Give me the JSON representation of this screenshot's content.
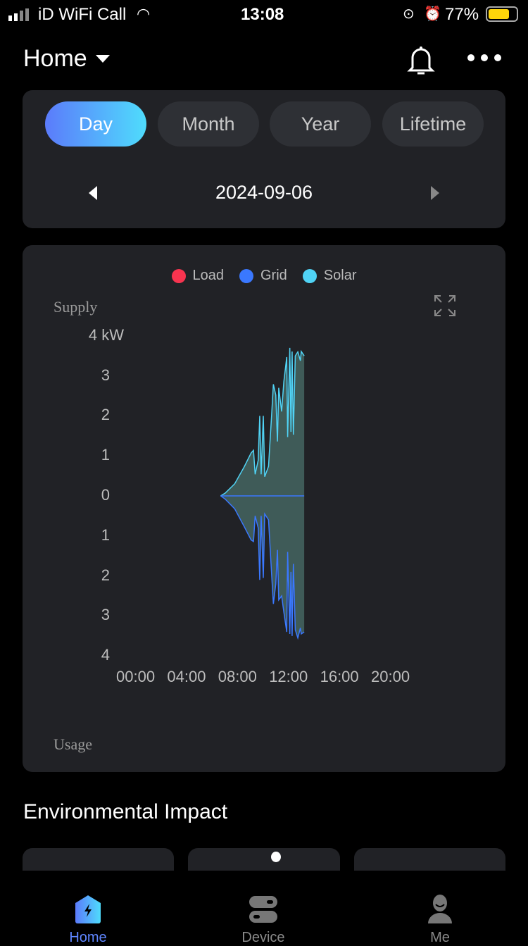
{
  "status_bar": {
    "carrier": "iD WiFi Call",
    "time": "13:08",
    "battery": "77%"
  },
  "header": {
    "title": "Home",
    "bell_icon": "bell-icon",
    "more_icon": "more-icon"
  },
  "period_tabs": [
    {
      "label": "Day",
      "active": true
    },
    {
      "label": "Month",
      "active": false
    },
    {
      "label": "Year",
      "active": false
    },
    {
      "label": "Lifetime",
      "active": false
    }
  ],
  "date_nav": {
    "date": "2024-09-06"
  },
  "chart": {
    "supply_label": "Supply",
    "usage_label": "Usage",
    "legend": [
      {
        "name": "Load",
        "color": "#f7344f"
      },
      {
        "name": "Grid",
        "color": "#3a78ff"
      },
      {
        "name": "Solar",
        "color": "#50d3f5"
      }
    ]
  },
  "chart_data": {
    "type": "area",
    "xlim": [
      "00:00",
      "24:00"
    ],
    "ylim": [
      -4,
      4
    ],
    "x_ticks": [
      "00:00",
      "04:00",
      "08:00",
      "12:00",
      "16:00",
      "20:00"
    ],
    "y_ticks": [
      "4 kW",
      "3",
      "2",
      "1",
      "0",
      "1",
      "2",
      "3",
      "4"
    ],
    "series": [
      {
        "name": "Solar",
        "direction": "supply",
        "hours": [
          6.54,
          6.9,
          7.64,
          8.38,
          8.93,
          9.12,
          9.25,
          9.49,
          9.61,
          9.72,
          9.89,
          10.0,
          10.3,
          10.55,
          10.68,
          10.87,
          11.0,
          11.1,
          11.33,
          11.5,
          11.73,
          11.8,
          11.97,
          12.06,
          12.15,
          12.25,
          12.4,
          12.6,
          12.8,
          12.87,
          13.1
        ],
        "values": [
          0,
          0.07,
          0.3,
          0.72,
          1.07,
          1.14,
          0.54,
          0.89,
          2.0,
          0.54,
          2.0,
          0.48,
          0.74,
          2.06,
          2.79,
          2.52,
          1.36,
          2.7,
          2.11,
          2.85,
          3.47,
          1.47,
          3.7,
          1.6,
          3.61,
          1.53,
          3.5,
          3.6,
          3.38,
          3.61,
          3.5
        ]
      },
      {
        "name": "Grid",
        "direction": "usage",
        "hours": [
          6.54,
          6.9,
          7.64,
          8.38,
          8.93,
          9.12,
          9.25,
          9.49,
          9.61,
          9.72,
          9.89,
          10.0,
          10.3,
          10.55,
          10.68,
          10.87,
          11.0,
          11.1,
          11.33,
          11.5,
          11.73,
          11.8,
          11.97,
          12.06,
          12.15,
          12.25,
          12.4,
          12.6,
          12.8,
          12.87,
          13.1
        ],
        "values": [
          0,
          0.08,
          0.32,
          0.76,
          1.1,
          1.14,
          0.5,
          0.8,
          2.1,
          0.5,
          2.05,
          0.45,
          0.6,
          2.0,
          2.7,
          2.2,
          1.35,
          2.6,
          2.5,
          2.9,
          3.4,
          1.4,
          3.45,
          1.9,
          3.5,
          1.7,
          3.35,
          3.55,
          3.3,
          3.45,
          3.4
        ]
      }
    ]
  },
  "section": {
    "title": "Environmental Impact"
  },
  "bottom_nav": [
    {
      "label": "Home",
      "active": true
    },
    {
      "label": "Device",
      "active": false
    },
    {
      "label": "Me",
      "active": false
    }
  ]
}
